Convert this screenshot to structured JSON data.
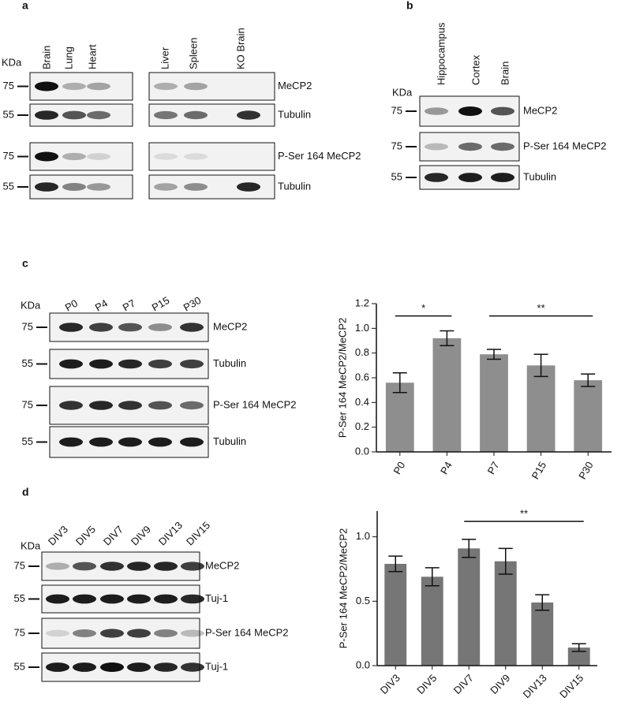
{
  "panels": [
    {
      "label": "a",
      "unit": "KDa",
      "lanes": [
        "Brain",
        "Lung",
        "Heart",
        "Liver",
        "Spleen",
        "KO Brain"
      ],
      "rows": [
        {
          "marker": 75,
          "protein": "MeCP2"
        },
        {
          "marker": 55,
          "protein": "Tubulin"
        },
        {
          "marker": 75,
          "protein": "P-Ser 164 MeCP2"
        },
        {
          "marker": 55,
          "protein": "Tubulin"
        }
      ]
    },
    {
      "label": "b",
      "unit": "KDa",
      "lanes": [
        "Hippocampus",
        "Cortex",
        "Brain"
      ],
      "rows": [
        {
          "marker": 75,
          "protein": "MeCP2"
        },
        {
          "marker": 75,
          "protein": "P-Ser 164 MeCP2"
        },
        {
          "marker": 55,
          "protein": "Tubulin"
        }
      ]
    },
    {
      "label": "c",
      "unit": "KDa",
      "lanes": [
        "P0",
        "P4",
        "P7",
        "P15",
        "P30"
      ],
      "rows": [
        {
          "marker": 75,
          "protein": "MeCP2"
        },
        {
          "marker": 55,
          "protein": "Tubulin"
        },
        {
          "marker": 75,
          "protein": "P-Ser 164 MeCP2"
        },
        {
          "marker": 55,
          "protein": "Tubulin"
        }
      ]
    },
    {
      "label": "d",
      "unit": "KDa",
      "lanes": [
        "DIV3",
        "DIV5",
        "DIV7",
        "DIV9",
        "DIV13",
        "DIV15"
      ],
      "rows": [
        {
          "marker": 75,
          "protein": "MeCP2"
        },
        {
          "marker": 55,
          "protein": "Tuj-1"
        },
        {
          "marker": 75,
          "protein": "P-Ser 164 MeCP2"
        },
        {
          "marker": 55,
          "protein": "Tuj-1"
        }
      ]
    }
  ],
  "chart_data": [
    {
      "type": "bar",
      "y_label": "P-Ser 164 MeCP2/MeCP2",
      "categories": [
        "P0",
        "P4",
        "P7",
        "P15",
        "P30"
      ],
      "values": [
        0.56,
        0.92,
        0.79,
        0.7,
        0.58
      ],
      "errors": [
        0.08,
        0.06,
        0.04,
        0.09,
        0.05
      ],
      "color": "#8e8e8e",
      "ylim": [
        0,
        1.2
      ],
      "yticks": [
        {
          "value": 0,
          "label": "0.0"
        },
        0.2,
        0.4,
        0.6,
        0.8,
        {
          "value": 1,
          "label": "1.0"
        },
        1.2
      ],
      "annotations": [
        "*",
        "**"
      ]
    },
    {
      "type": "bar",
      "y_label": "P-Ser 164 MeCP2/MeCP2",
      "categories": [
        "DIV3",
        "DIV5",
        "DIV7",
        "DIV9",
        "DIV13",
        "DIV15"
      ],
      "values": [
        0.79,
        0.69,
        0.91,
        0.81,
        0.49,
        0.14
      ],
      "errors": [
        0.06,
        0.07,
        0.07,
        0.1,
        0.06,
        0.03
      ],
      "color": "#767676",
      "ylim": [
        0,
        1.2
      ],
      "yticks": [
        {
          "value": 0,
          "label": "0.0"
        },
        0.5,
        {
          "value": 1,
          "label": "1.0"
        }
      ],
      "annotations": [
        "**"
      ]
    }
  ]
}
